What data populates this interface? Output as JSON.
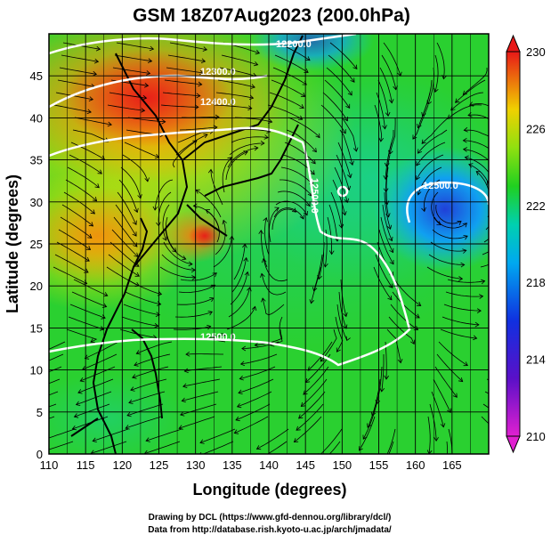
{
  "title": "GSM 18Z07Aug2023 (200.0hPa)",
  "xlabel": "Longitude (degrees)",
  "ylabel": "Latitude  (degrees)",
  "credit_line1": "Drawing by DCL (https://www.gfd-dennou.org/library/dcl/)",
  "credit_line2": "Data from http://database.rish.kyoto-u.ac.jp/arch/jmadata/",
  "x_ticks": [
    "110",
    "115",
    "120",
    "125",
    "130",
    "135",
    "140",
    "145",
    "150",
    "155",
    "160",
    "165"
  ],
  "y_ticks": [
    "0",
    "5",
    "10",
    "15",
    "20",
    "25",
    "30",
    "35",
    "40",
    "45"
  ],
  "colorbar_ticks": [
    "210",
    "214",
    "218",
    "222",
    "226",
    "230"
  ],
  "contour_labels": [
    "12200.0",
    "12300.0",
    "12500.0",
    "12500.0",
    "12400.0",
    "12500.0"
  ],
  "map_data": {
    "type": "meteorological map",
    "variable": "temperature (shaded) with geopotential height contours and wind streamlines",
    "lon_range": [
      110,
      170
    ],
    "lat_range": [
      0,
      50
    ],
    "color_range": [
      210,
      230
    ],
    "colors": {
      "cold": "#1010c8",
      "cool": "#00c8e6",
      "mid": "#2ad02a",
      "warm": "#f0e000",
      "hot": "#e82018"
    }
  }
}
